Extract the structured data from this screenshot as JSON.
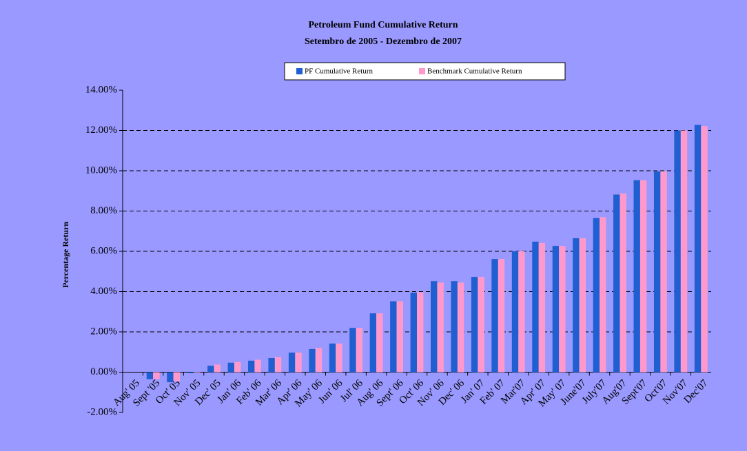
{
  "chart_data": {
    "type": "bar",
    "title": "Petroleum Fund Cumulative Return",
    "subtitle": "Setembro de 2005 - Dezembro de 2007",
    "y_label": "Percentage Return",
    "categories": [
      "Aug' 05",
      "Sept '05",
      "Oct' 05",
      "Nov' 05",
      "Dec' 05",
      "Jan' 06",
      "Feb' 06",
      "Mar' 06",
      "Apr' 06",
      "May' 06",
      "Jun' 06",
      "Jul' 06",
      "Aug' 06",
      "Sept' 06",
      "Oct' 06",
      "Nov' 06",
      "Dec' 06",
      "Jan' 07",
      "Feb' 07",
      "Mar'07",
      "Apr' 07",
      "May' 07",
      "June'07",
      "July'07",
      "Aug'07",
      "Sept'07",
      "Oct'07",
      "Nov'07",
      "Dec'07"
    ],
    "series": [
      {
        "name": "PF Cumulative Return",
        "color": "#1f5fd1",
        "values": [
          null,
          -0.35,
          -0.5,
          -0.05,
          0.32,
          0.47,
          0.57,
          0.7,
          0.97,
          1.15,
          1.42,
          2.2,
          2.92,
          3.52,
          3.95,
          4.52,
          4.52,
          4.73,
          5.62,
          6.0,
          6.48,
          6.27,
          6.65,
          7.65,
          8.82,
          9.53,
          9.97,
          12.0,
          12.28
        ]
      },
      {
        "name": "Benchmark Cumulative Return",
        "color": "#ff99cc",
        "values": [
          null,
          -0.35,
          -0.45,
          -0.03,
          0.38,
          0.5,
          0.62,
          0.75,
          0.97,
          1.2,
          1.42,
          2.2,
          2.92,
          3.52,
          3.97,
          4.45,
          4.45,
          4.73,
          5.62,
          6.0,
          6.42,
          6.27,
          6.65,
          7.7,
          8.87,
          9.53,
          9.97,
          12.0,
          12.22
        ]
      }
    ],
    "ylim": [
      -2,
      14
    ],
    "yticks": [
      {
        "value": -2,
        "label": "-2.00%"
      },
      {
        "value": 0,
        "label": "0.00%"
      },
      {
        "value": 2,
        "label": "2.00%"
      },
      {
        "value": 4,
        "label": "4.00%"
      },
      {
        "value": 6,
        "label": "6.00%"
      },
      {
        "value": 8,
        "label": "8.00%"
      },
      {
        "value": 10,
        "label": "10.00%"
      },
      {
        "value": 12,
        "label": "12.00%"
      },
      {
        "value": 14,
        "label": "14.00%"
      }
    ],
    "grid": true,
    "legend": "top"
  }
}
